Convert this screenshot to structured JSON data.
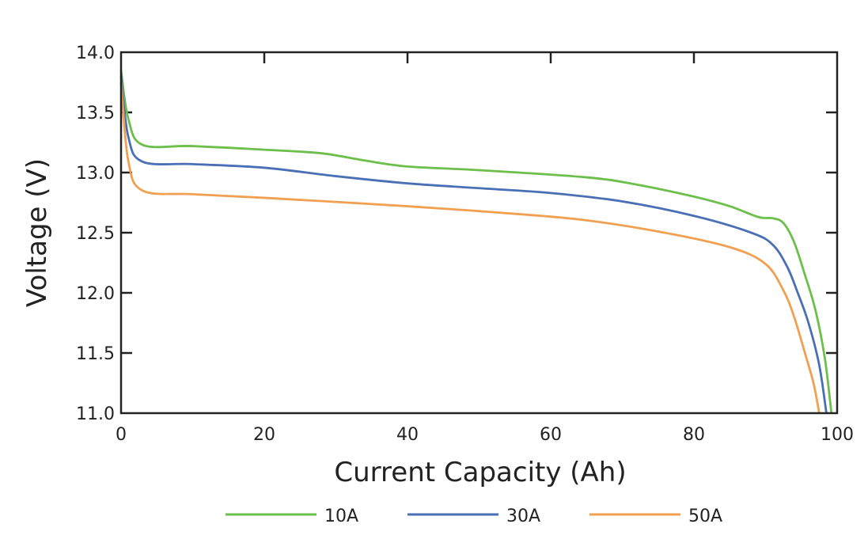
{
  "chart_data": {
    "type": "line",
    "title": "",
    "xlabel": "Current Capacity (Ah)",
    "ylabel": "Voltage (V)",
    "xlim": [
      0,
      100
    ],
    "ylim": [
      11.0,
      14.0
    ],
    "xticks": [
      "0",
      "20",
      "40",
      "60",
      "80",
      "100"
    ],
    "yticks": [
      "11.0",
      "11.5",
      "12.0",
      "12.5",
      "13.0",
      "13.5",
      "14.0"
    ],
    "grid": false,
    "legend_position": "bottom",
    "series": [
      {
        "name": "10A",
        "color": "#6cbf4a",
        "points": [
          [
            0,
            13.85
          ],
          [
            1,
            13.45
          ],
          [
            3,
            13.23
          ],
          [
            10,
            13.22
          ],
          [
            20,
            13.19
          ],
          [
            28,
            13.16
          ],
          [
            34,
            13.1
          ],
          [
            40,
            13.05
          ],
          [
            50,
            13.02
          ],
          [
            65,
            12.96
          ],
          [
            72,
            12.9
          ],
          [
            80,
            12.8
          ],
          [
            85,
            12.72
          ],
          [
            89,
            12.63
          ],
          [
            91,
            12.62
          ],
          [
            92.5,
            12.58
          ],
          [
            94,
            12.42
          ],
          [
            95.5,
            12.15
          ],
          [
            97,
            11.85
          ],
          [
            98.3,
            11.45
          ],
          [
            99.2,
            11.0
          ]
        ]
      },
      {
        "name": "30A",
        "color": "#4a6fb5",
        "points": [
          [
            0,
            13.8
          ],
          [
            1,
            13.3
          ],
          [
            3,
            13.09
          ],
          [
            10,
            13.07
          ],
          [
            20,
            13.04
          ],
          [
            30,
            12.97
          ],
          [
            40,
            12.91
          ],
          [
            50,
            12.87
          ],
          [
            60,
            12.83
          ],
          [
            70,
            12.76
          ],
          [
            80,
            12.64
          ],
          [
            88,
            12.5
          ],
          [
            91,
            12.4
          ],
          [
            93,
            12.22
          ],
          [
            94.5,
            12.0
          ],
          [
            96,
            11.75
          ],
          [
            97.5,
            11.4
          ],
          [
            98.5,
            11.0
          ]
        ]
      },
      {
        "name": "50A",
        "color": "#f0a050",
        "points": [
          [
            0,
            13.75
          ],
          [
            1,
            13.1
          ],
          [
            3,
            12.85
          ],
          [
            10,
            12.82
          ],
          [
            20,
            12.79
          ],
          [
            40,
            12.72
          ],
          [
            52,
            12.67
          ],
          [
            64,
            12.61
          ],
          [
            75,
            12.51
          ],
          [
            85,
            12.38
          ],
          [
            90,
            12.24
          ],
          [
            92.5,
            12.02
          ],
          [
            94,
            11.8
          ],
          [
            95.5,
            11.5
          ],
          [
            96.7,
            11.25
          ],
          [
            97.5,
            11.0
          ]
        ]
      }
    ]
  }
}
